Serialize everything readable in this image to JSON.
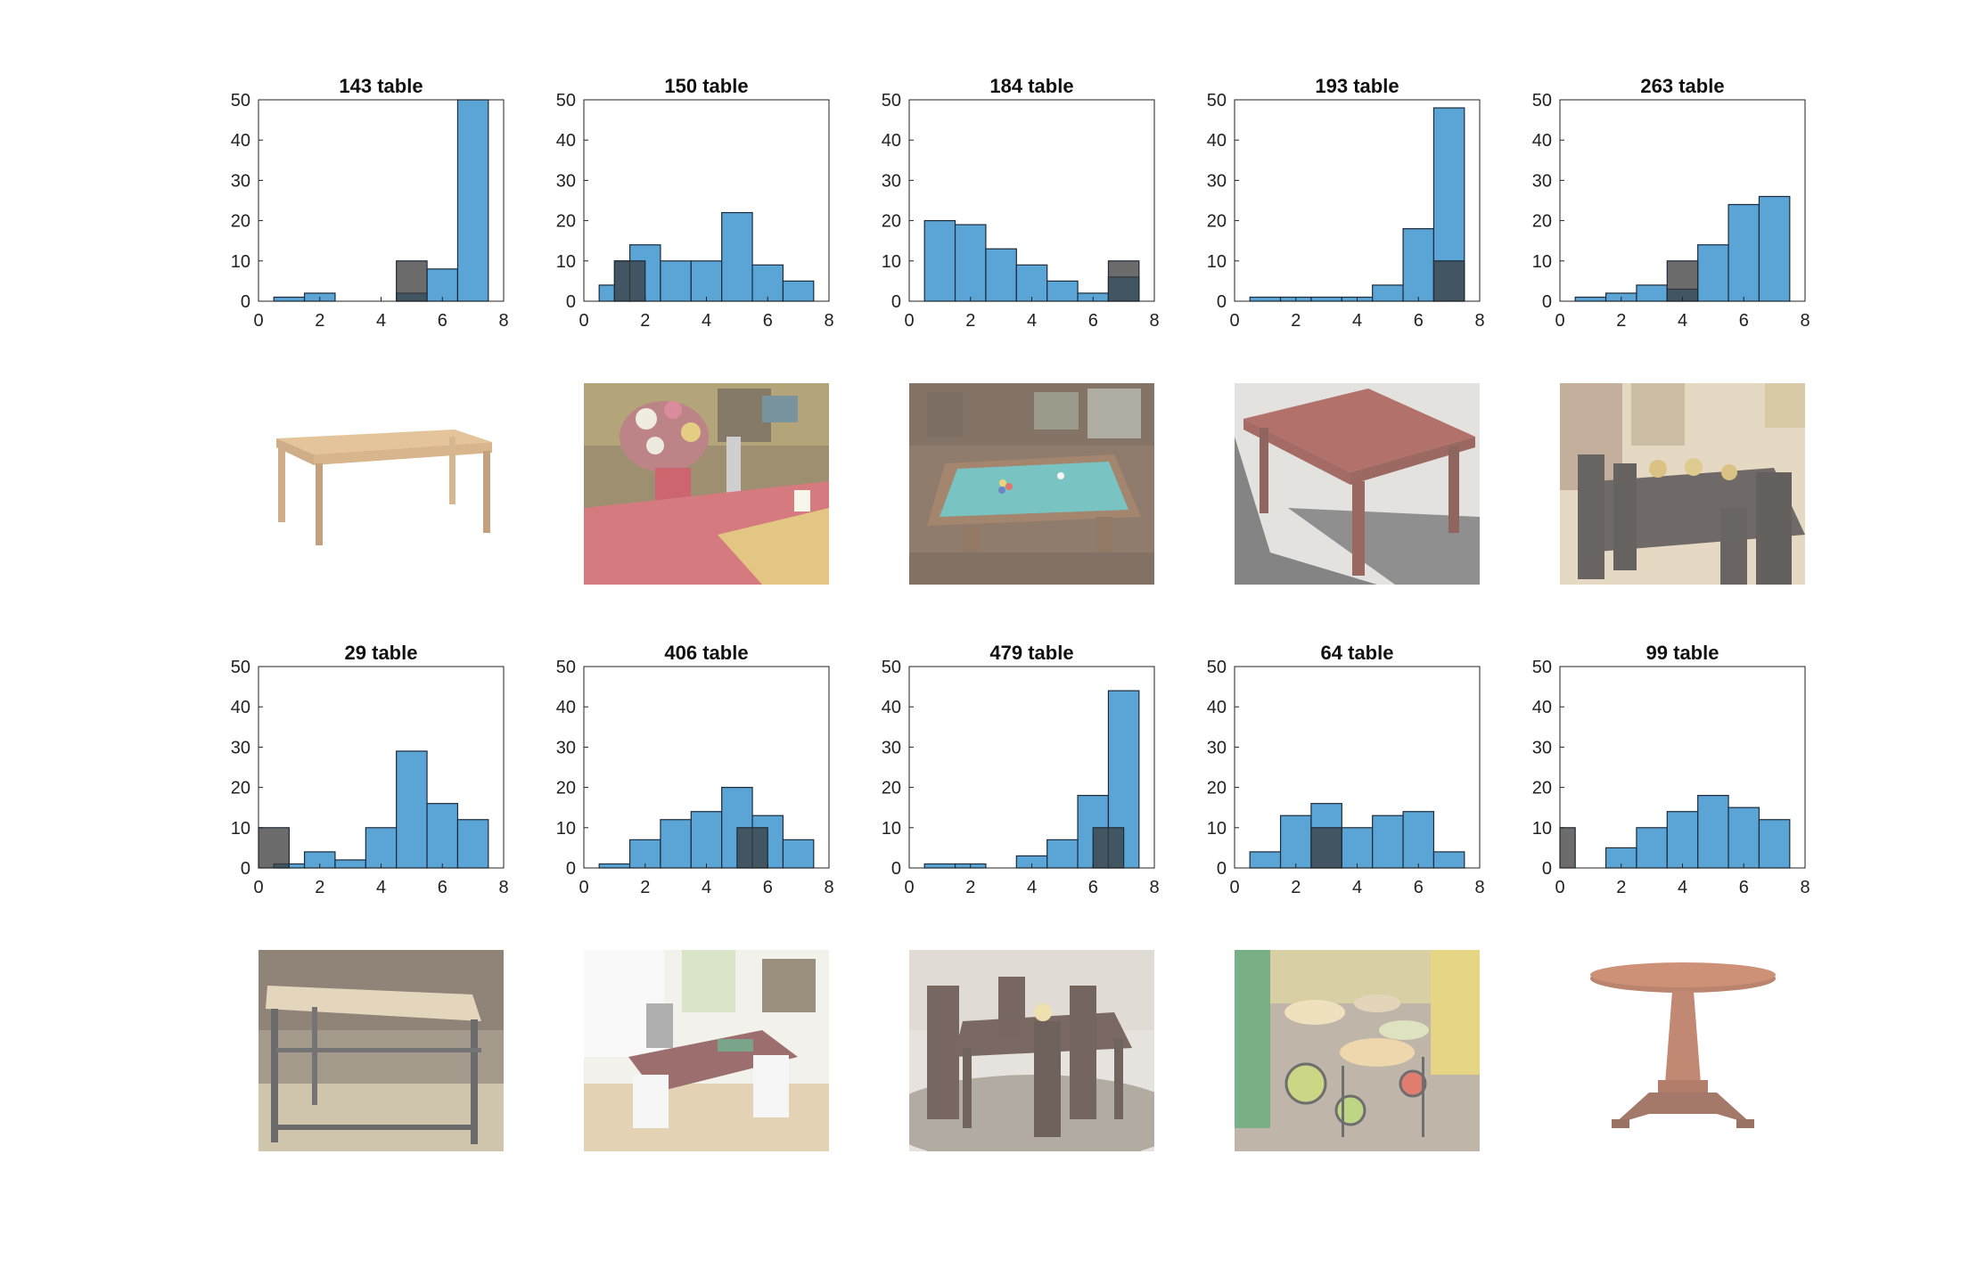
{
  "figure": {
    "colors": {
      "bar_fill": "#5aa4d6",
      "bar_stroke": "#1d2b3a",
      "highlight_fill": "#3b3b3b",
      "highlight_opacity": 0.75,
      "axis": "#222222",
      "background": "#ffffff"
    }
  },
  "chart_data": [
    {
      "type": "bar",
      "title": "143 table",
      "xlim": [
        0,
        8
      ],
      "ylim": [
        0,
        50
      ],
      "xticks": [
        0,
        2,
        4,
        6,
        8
      ],
      "yticks": [
        0,
        10,
        20,
        30,
        40,
        50
      ],
      "bin_edges": [
        0.5,
        1.5,
        2.5,
        3.5,
        4.5,
        5.5,
        6.5,
        7.5
      ],
      "values": [
        1,
        2,
        0,
        0,
        2,
        8,
        50
      ],
      "highlight": {
        "bin_edges": [
          4.5,
          5.5
        ],
        "value": 10
      },
      "image": "light wooden rectangular table on white background"
    },
    {
      "type": "bar",
      "title": "150 table",
      "xlim": [
        0,
        8
      ],
      "ylim": [
        0,
        50
      ],
      "xticks": [
        0,
        2,
        4,
        6,
        8
      ],
      "yticks": [
        0,
        10,
        20,
        30,
        40,
        50
      ],
      "bin_edges": [
        0.5,
        1.0,
        1.5,
        2.5,
        3.5,
        4.5,
        5.5,
        6.5,
        7.5
      ],
      "values": [
        4,
        10,
        14,
        10,
        10,
        22,
        9,
        5
      ],
      "highlight": {
        "bin_edges": [
          1.0,
          2.0
        ],
        "value": 10
      },
      "image": "dining table set with flowers and candles, red tablecloth"
    },
    {
      "type": "bar",
      "title": "184 table",
      "xlim": [
        0,
        8
      ],
      "ylim": [
        0,
        50
      ],
      "xticks": [
        0,
        2,
        4,
        6,
        8
      ],
      "yticks": [
        0,
        10,
        20,
        30,
        40,
        50
      ],
      "bin_edges": [
        0.5,
        1.5,
        2.5,
        3.5,
        4.5,
        5.5,
        6.5,
        7.5
      ],
      "values": [
        20,
        19,
        13,
        9,
        5,
        2,
        6
      ],
      "highlight": {
        "bin_edges": [
          6.5,
          7.5
        ],
        "value": 10
      },
      "image": "pool table in a wood paneled room"
    },
    {
      "type": "bar",
      "title": "193 table",
      "xlim": [
        0,
        8
      ],
      "ylim": [
        0,
        50
      ],
      "xticks": [
        0,
        2,
        4,
        6,
        8
      ],
      "yticks": [
        0,
        10,
        20,
        30,
        40,
        50
      ],
      "bin_edges": [
        0.5,
        1.5,
        2.5,
        3.5,
        4.5,
        5.5,
        6.5,
        7.5
      ],
      "values": [
        1,
        1,
        1,
        1,
        4,
        18,
        48
      ],
      "highlight": {
        "bin_edges": [
          6.5,
          7.5
        ],
        "value": 10
      },
      "image": "red rustic wooden table outdoors on gravel"
    },
    {
      "type": "bar",
      "title": "263 table",
      "xlim": [
        0,
        8
      ],
      "ylim": [
        0,
        50
      ],
      "xticks": [
        0,
        2,
        4,
        6,
        8
      ],
      "yticks": [
        0,
        10,
        20,
        30,
        40,
        50
      ],
      "bin_edges": [
        0.5,
        1.5,
        2.5,
        3.5,
        4.5,
        5.5,
        6.5,
        7.5
      ],
      "values": [
        1,
        2,
        4,
        3,
        14,
        24,
        26
      ],
      "highlight": {
        "bin_edges": [
          3.5,
          4.5
        ],
        "value": 10
      },
      "image": "dark dining table with chairs in a dining room"
    },
    {
      "type": "bar",
      "title": "29 table",
      "xlim": [
        0,
        8
      ],
      "ylim": [
        0,
        50
      ],
      "xticks": [
        0,
        2,
        4,
        6,
        8
      ],
      "yticks": [
        0,
        10,
        20,
        30,
        40,
        50
      ],
      "bin_edges": [
        0.5,
        1.5,
        2.5,
        3.5,
        4.5,
        5.5,
        6.5,
        7.5
      ],
      "values": [
        1,
        4,
        2,
        10,
        29,
        16,
        12
      ],
      "highlight": {
        "bin_edges": [
          0.0,
          1.0
        ],
        "value": 10
      },
      "image": "metal frame workbench table in a workshop"
    },
    {
      "type": "bar",
      "title": "406 table",
      "xlim": [
        0,
        8
      ],
      "ylim": [
        0,
        50
      ],
      "xticks": [
        0,
        2,
        4,
        6,
        8
      ],
      "yticks": [
        0,
        10,
        20,
        30,
        40,
        50
      ],
      "bin_edges": [
        0.5,
        1.5,
        2.5,
        3.5,
        4.5,
        5.5,
        6.5,
        7.5
      ],
      "values": [
        1,
        7,
        12,
        14,
        20,
        13,
        7
      ],
      "highlight": {
        "bin_edges": [
          5.0,
          6.0
        ],
        "value": 10
      },
      "image": "desk in a bright room with parquet floor"
    },
    {
      "type": "bar",
      "title": "479 table",
      "xlim": [
        0,
        8
      ],
      "ylim": [
        0,
        50
      ],
      "xticks": [
        0,
        2,
        4,
        6,
        8
      ],
      "yticks": [
        0,
        10,
        20,
        30,
        40,
        50
      ],
      "bin_edges": [
        0.5,
        1.5,
        2.5,
        3.5,
        4.5,
        5.5,
        6.5,
        7.5
      ],
      "values": [
        1,
        1,
        0,
        3,
        7,
        18,
        44
      ],
      "highlight": {
        "bin_edges": [
          6.0,
          7.0
        ],
        "value": 10
      },
      "image": "dark wood dining set on a patterned rug"
    },
    {
      "type": "bar",
      "title": "64 table",
      "xlim": [
        0,
        8
      ],
      "ylim": [
        0,
        50
      ],
      "xticks": [
        0,
        2,
        4,
        6,
        8
      ],
      "yticks": [
        0,
        10,
        20,
        30,
        40,
        50
      ],
      "bin_edges": [
        0.5,
        1.5,
        2.5,
        3.5,
        4.5,
        5.5,
        6.5,
        7.5
      ],
      "values": [
        4,
        13,
        16,
        10,
        13,
        14,
        4
      ],
      "highlight": {
        "bin_edges": [
          2.5,
          3.5
        ],
        "value": 10
      },
      "image": "mosaic bistro tables with wrought iron chairs"
    },
    {
      "type": "bar",
      "title": "99 table",
      "xlim": [
        0,
        8
      ],
      "ylim": [
        0,
        50
      ],
      "xticks": [
        0,
        2,
        4,
        6,
        8
      ],
      "yticks": [
        0,
        10,
        20,
        30,
        40,
        50
      ],
      "bin_edges": [
        1.5,
        2.5,
        3.5,
        4.5,
        5.5,
        6.5,
        7.5
      ],
      "values": [
        5,
        10,
        14,
        18,
        15,
        12
      ],
      "highlight": {
        "bin_edges": [
          0.0,
          0.5
        ],
        "value": 10
      },
      "image": "round wooden pedestal table on white background"
    }
  ]
}
